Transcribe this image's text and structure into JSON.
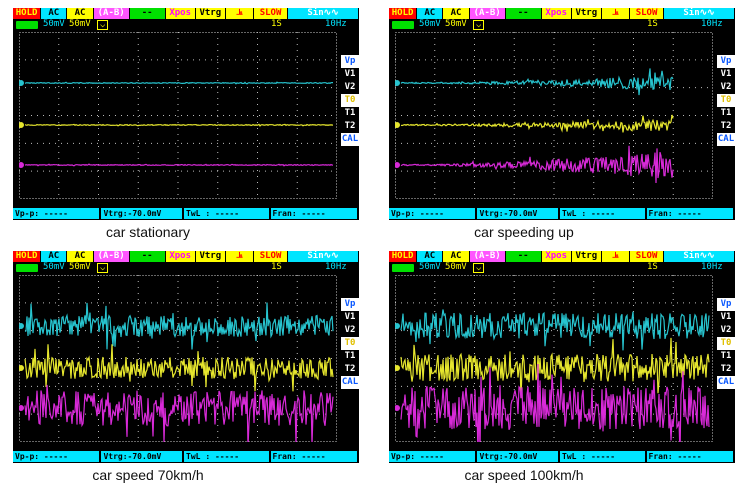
{
  "topbar": {
    "items": [
      {
        "label": "HOLD",
        "bg": "#ff0000",
        "fg": "#ffff00",
        "w": 28
      },
      {
        "label": "AC",
        "bg": "#00e5ff",
        "fg": "#000000",
        "w": 26
      },
      {
        "label": "AC",
        "bg": "#ffff00",
        "fg": "#000000",
        "w": 26
      },
      {
        "label": "(A-B)",
        "bg": "#ff55ff",
        "fg": "#ffffff",
        "w": 36
      },
      {
        "label": "--",
        "bg": "#00e000",
        "fg": "#000000",
        "w": 36
      },
      {
        "label": "Xpos",
        "bg": "#ffff00",
        "fg": "#ff00ff",
        "w": 30
      },
      {
        "label": "Vtrg",
        "bg": "#ffff00",
        "fg": "#000000",
        "w": 30
      },
      {
        "label": "⫡",
        "bg": "#ffff00",
        "fg": "#ff0000",
        "w": 28
      },
      {
        "label": "SLOW",
        "bg": "#ffff00",
        "fg": "#ff0000",
        "w": 34
      },
      {
        "label": "Sin∿∿",
        "bg": "#00e5ff",
        "fg": "#ffffff",
        "w": 72
      }
    ]
  },
  "row2": {
    "ch_a": "50mV",
    "ch_b": "50mV",
    "mode": "1S",
    "freq": "10Hz"
  },
  "channels": [
    "Vp",
    "V1",
    "V2",
    "T0",
    "T1",
    "T2",
    "CAL"
  ],
  "bottom": {
    "vpp": "Vp-p: -----",
    "vtrg": "Vtrg:-70.0mV",
    "twl": "TwL : -----",
    "fran": "Fran: -----"
  },
  "panels": [
    {
      "caption": "car stationary",
      "noise": [
        0.4,
        0.4,
        0.4
      ],
      "ramp": false
    },
    {
      "caption": "car speeding up",
      "noise": [
        7,
        6,
        14
      ],
      "ramp": true
    },
    {
      "caption": "car speed 70km/h",
      "noise": [
        11,
        11,
        18
      ],
      "ramp": false
    },
    {
      "caption": "car speed 100km/h",
      "noise": [
        13,
        14,
        22
      ],
      "ramp": false
    }
  ],
  "colors": {
    "cyan": "#27c4cf",
    "yellow": "#e6e62e",
    "magenta": "#d82ad8"
  }
}
